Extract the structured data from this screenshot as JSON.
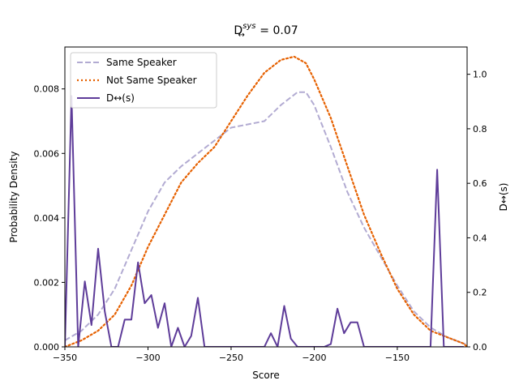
{
  "chart_data": {
    "type": "line",
    "title_main": "D",
    "title_sup": "sys",
    "title_sub": "↔",
    "title_rest": " = 0.07",
    "xlabel": "Score",
    "ylabel": "Probability Density",
    "y2label": "D↔(s)",
    "xlim": [
      -350,
      -108
    ],
    "ylim": [
      0,
      0.0093
    ],
    "y2lim": [
      0,
      1.1
    ],
    "xticks": [
      -350,
      -300,
      -250,
      -200,
      -150
    ],
    "yticks": [
      0.0,
      0.002,
      0.004,
      0.006,
      0.008
    ],
    "ytick_labels": [
      "0.000",
      "0.002",
      "0.004",
      "0.006",
      "0.008"
    ],
    "y2ticks": [
      0.0,
      0.2,
      0.4,
      0.6,
      0.8,
      1.0
    ],
    "y2tick_labels": [
      "0.0",
      "0.2",
      "0.4",
      "0.6",
      "0.8",
      "1.0"
    ],
    "legend_position": "top-left",
    "legend": [
      "Same Speaker",
      "Not Same Speaker",
      "D↔(s)"
    ],
    "series": [
      {
        "name": "Same Speaker",
        "axis": "left",
        "color": "#b2abd2",
        "style": "dashed",
        "x": [
          -350,
          -340,
          -330,
          -320,
          -310,
          -300,
          -290,
          -280,
          -270,
          -260,
          -250,
          -240,
          -230,
          -220,
          -210,
          -205,
          -200,
          -190,
          -180,
          -170,
          -160,
          -150,
          -140,
          -130,
          -120,
          -110,
          -108
        ],
        "y": [
          0.0002,
          0.0005,
          0.001,
          0.0018,
          0.003,
          0.0042,
          0.0051,
          0.0056,
          0.006,
          0.0064,
          0.0068,
          0.0069,
          0.007,
          0.0075,
          0.0079,
          0.0079,
          0.0075,
          0.0062,
          0.0048,
          0.0037,
          0.0028,
          0.0019,
          0.0011,
          0.0006,
          0.0003,
          0.0001,
          0.0001
        ]
      },
      {
        "name": "Not Same Speaker",
        "axis": "left",
        "color": "#e66101",
        "style": "dotted",
        "x": [
          -350,
          -340,
          -330,
          -320,
          -310,
          -300,
          -290,
          -280,
          -270,
          -260,
          -250,
          -240,
          -230,
          -220,
          -212,
          -205,
          -200,
          -190,
          -180,
          -170,
          -160,
          -150,
          -140,
          -130,
          -120,
          -110,
          -108
        ],
        "y": [
          0.0,
          0.0002,
          0.0005,
          0.001,
          0.0019,
          0.0031,
          0.0041,
          0.0051,
          0.0057,
          0.0062,
          0.007,
          0.0078,
          0.0085,
          0.0089,
          0.009,
          0.0088,
          0.0083,
          0.0071,
          0.0056,
          0.0041,
          0.0029,
          0.0018,
          0.001,
          0.0005,
          0.0003,
          0.0001,
          0.0
        ]
      },
      {
        "name": "D↔(s)",
        "axis": "right",
        "color": "#5e3c99",
        "style": "solid",
        "x": [
          -350,
          -346,
          -342,
          -338,
          -334,
          -330,
          -326,
          -322,
          -318,
          -314,
          -310,
          -306,
          -302,
          -298,
          -294,
          -290,
          -286,
          -282,
          -278,
          -274,
          -270,
          -266,
          -262,
          -258,
          -254,
          -250,
          -246,
          -242,
          -238,
          -234,
          -230,
          -226,
          -222,
          -218,
          -214,
          -210,
          -206,
          -202,
          -198,
          -194,
          -190,
          -186,
          -182,
          -178,
          -174,
          -170,
          -166,
          -162,
          -158,
          -154,
          -150,
          -146,
          -142,
          -138,
          -134,
          -130,
          -126,
          -122,
          -118,
          -114,
          -110
        ],
        "y": [
          0.0,
          0.92,
          0.0,
          0.24,
          0.08,
          0.36,
          0.13,
          0.0,
          0.0,
          0.1,
          0.1,
          0.31,
          0.16,
          0.19,
          0.07,
          0.16,
          0.0,
          0.07,
          0.0,
          0.04,
          0.18,
          0.0,
          0.0,
          0.0,
          0.0,
          0.0,
          0.0,
          0.0,
          0.0,
          0.0,
          0.0,
          0.05,
          0.0,
          0.15,
          0.03,
          0.0,
          0.0,
          0.0,
          0.0,
          0.0,
          0.01,
          0.14,
          0.05,
          0.09,
          0.09,
          0.0,
          0.0,
          0.0,
          0.0,
          0.0,
          0.0,
          0.0,
          0.0,
          0.0,
          0.0,
          0.0,
          0.65,
          0.0,
          0.0,
          0.0,
          0.0
        ]
      }
    ]
  }
}
